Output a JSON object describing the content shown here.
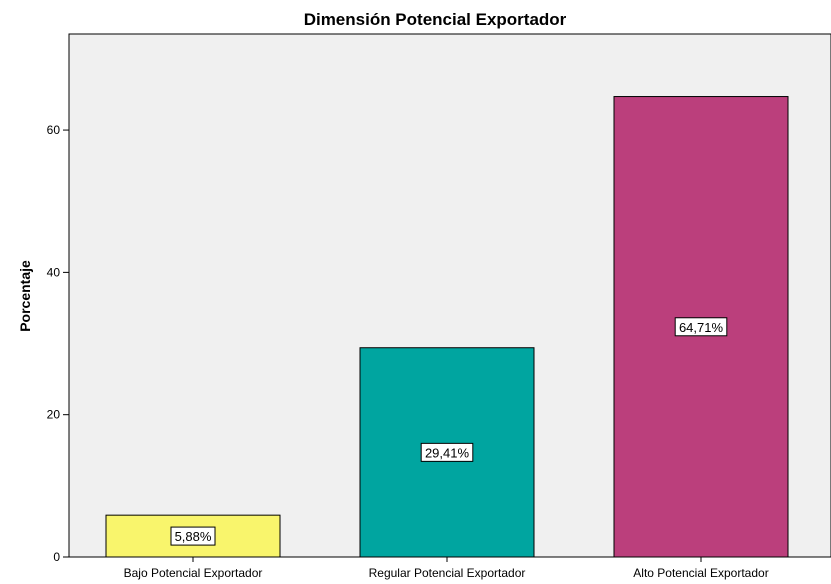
{
  "chart_data": {
    "type": "bar",
    "title": "Dimensión Potencial Exportador",
    "xlabel": "",
    "ylabel": "Porcentaje",
    "categories": [
      "Bajo Potencial Exportador",
      "Regular Potencial Exportador",
      "Alto Potencial Exportador"
    ],
    "values": [
      5.88,
      29.41,
      64.71
    ],
    "data_labels": [
      "5,88%",
      "29,41%",
      "64,71%"
    ],
    "bar_colors": [
      "#f9f56c",
      "#00a5a0",
      "#bb3f7c"
    ],
    "ylim": [
      0,
      73.5
    ],
    "yticks": [
      0,
      20,
      40,
      60
    ],
    "ytick_labels": [
      "0",
      "20",
      "40",
      "60"
    ],
    "grid": false,
    "plot_background": "#f0f0f0"
  }
}
